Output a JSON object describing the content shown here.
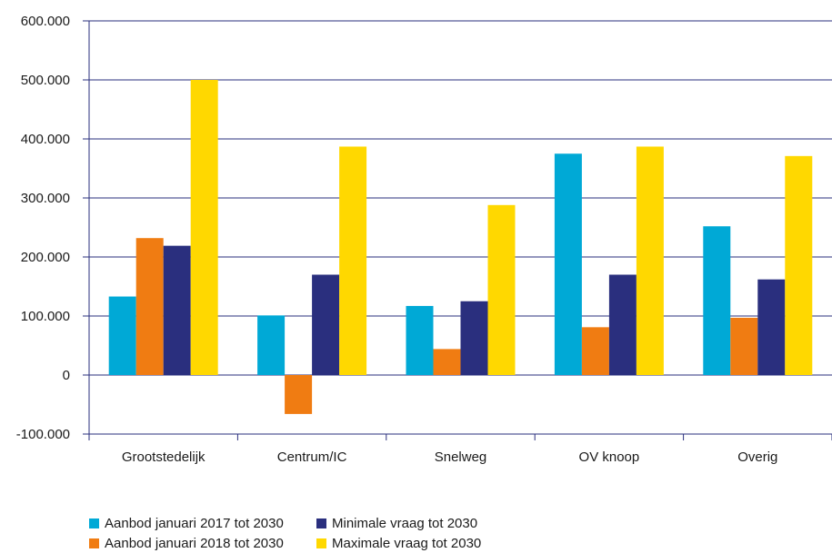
{
  "chart_data": {
    "type": "bar",
    "categories": [
      "Grootstedelijk",
      "Centrum/IC",
      "Snelweg",
      "OV knoop",
      "Overig"
    ],
    "series": [
      {
        "name": "Aanbod januari 2017 tot 2030",
        "color": "#00a9d6",
        "values": [
          133000,
          101000,
          117000,
          375000,
          252000
        ]
      },
      {
        "name": "Aanbod januari 2018 tot 2030",
        "color": "#f07c12",
        "values": [
          232000,
          -66000,
          44000,
          81000,
          97000
        ]
      },
      {
        "name": "Minimale vraag tot 2030",
        "color": "#2a2f7e",
        "values": [
          219000,
          170000,
          125000,
          170000,
          162000
        ]
      },
      {
        "name": "Maximale vraag tot 2030",
        "color": "#ffd800",
        "values": [
          500000,
          387000,
          288000,
          387000,
          371000
        ]
      }
    ],
    "ylim": [
      -100000,
      600000
    ],
    "yticks": [
      600000,
      500000,
      400000,
      300000,
      200000,
      100000,
      0,
      -100000
    ],
    "ytick_labels": [
      "600.000",
      "500.000",
      "400.000",
      "300.000",
      "200.000",
      "100.000",
      "0",
      "-100.000"
    ],
    "grid": true,
    "legend_position": "bottom-left",
    "title": "",
    "xlabel": "",
    "ylabel": ""
  }
}
